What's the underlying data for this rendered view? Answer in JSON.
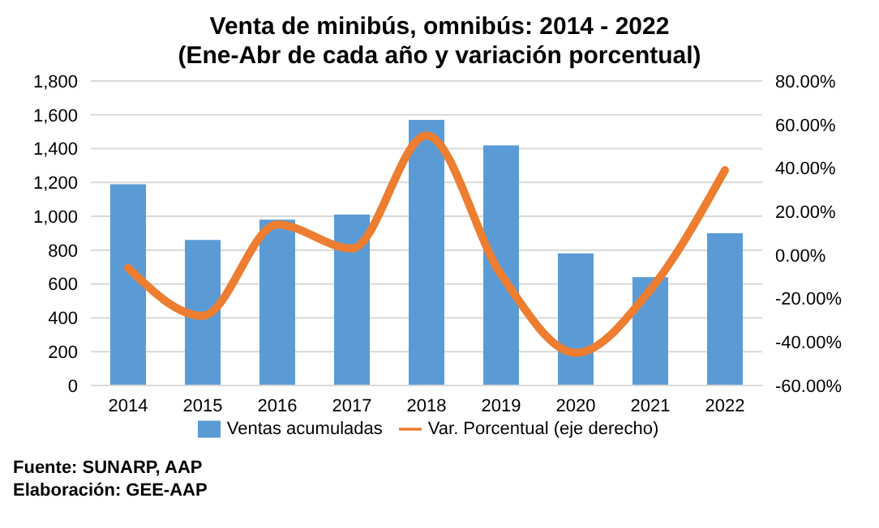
{
  "chart_data": {
    "type": "bar",
    "title": "Venta de minibús, omnibús: 2014 - 2022",
    "subtitle": "(Ene-Abr de cada año y variación porcentual)",
    "categories": [
      "2014",
      "2015",
      "2016",
      "2017",
      "2018",
      "2019",
      "2020",
      "2021",
      "2022"
    ],
    "series": [
      {
        "name": "Ventas acumuladas",
        "color": "#5b9bd5",
        "values": [
          1190,
          860,
          980,
          1010,
          1570,
          1420,
          780,
          640,
          900
        ]
      },
      {
        "name": "Var. Porcentual (eje derecho)",
        "type": "line",
        "axis": "y2",
        "color": "#ed7d31",
        "values": [
          -6,
          -28,
          14,
          3,
          55,
          -9,
          -45,
          -16,
          39
        ]
      }
    ],
    "ylim": [
      0,
      1800
    ],
    "yticks": [
      {
        "value": 0,
        "label": "0"
      },
      {
        "value": 200,
        "label": "200"
      },
      {
        "value": 400,
        "label": "400"
      },
      {
        "value": 600,
        "label": "600"
      },
      {
        "value": 800,
        "label": "800"
      },
      {
        "value": 1000,
        "label": "1,000"
      },
      {
        "value": 1200,
        "label": "1,200"
      },
      {
        "value": 1400,
        "label": "1,400"
      },
      {
        "value": 1600,
        "label": "1,600"
      },
      {
        "value": 1800,
        "label": "1,800"
      }
    ],
    "y2lim": [
      -60,
      80
    ],
    "y2ticks": [
      {
        "value": -60,
        "label": "-60.00%"
      },
      {
        "value": -40,
        "label": "-40.00%"
      },
      {
        "value": -20,
        "label": "-20.00%"
      },
      {
        "value": 0,
        "label": "0.00%"
      },
      {
        "value": 20,
        "label": "20.00%"
      },
      {
        "value": 40,
        "label": "40.00%"
      },
      {
        "value": 60,
        "label": "60.00%"
      },
      {
        "value": 80,
        "label": "80.00%"
      }
    ],
    "grid": "y",
    "legend": "bottom",
    "marker": "none",
    "annotations": [
      "Fuente: SUNARP, AAP",
      "Elaboración: GEE-AAP"
    ]
  }
}
